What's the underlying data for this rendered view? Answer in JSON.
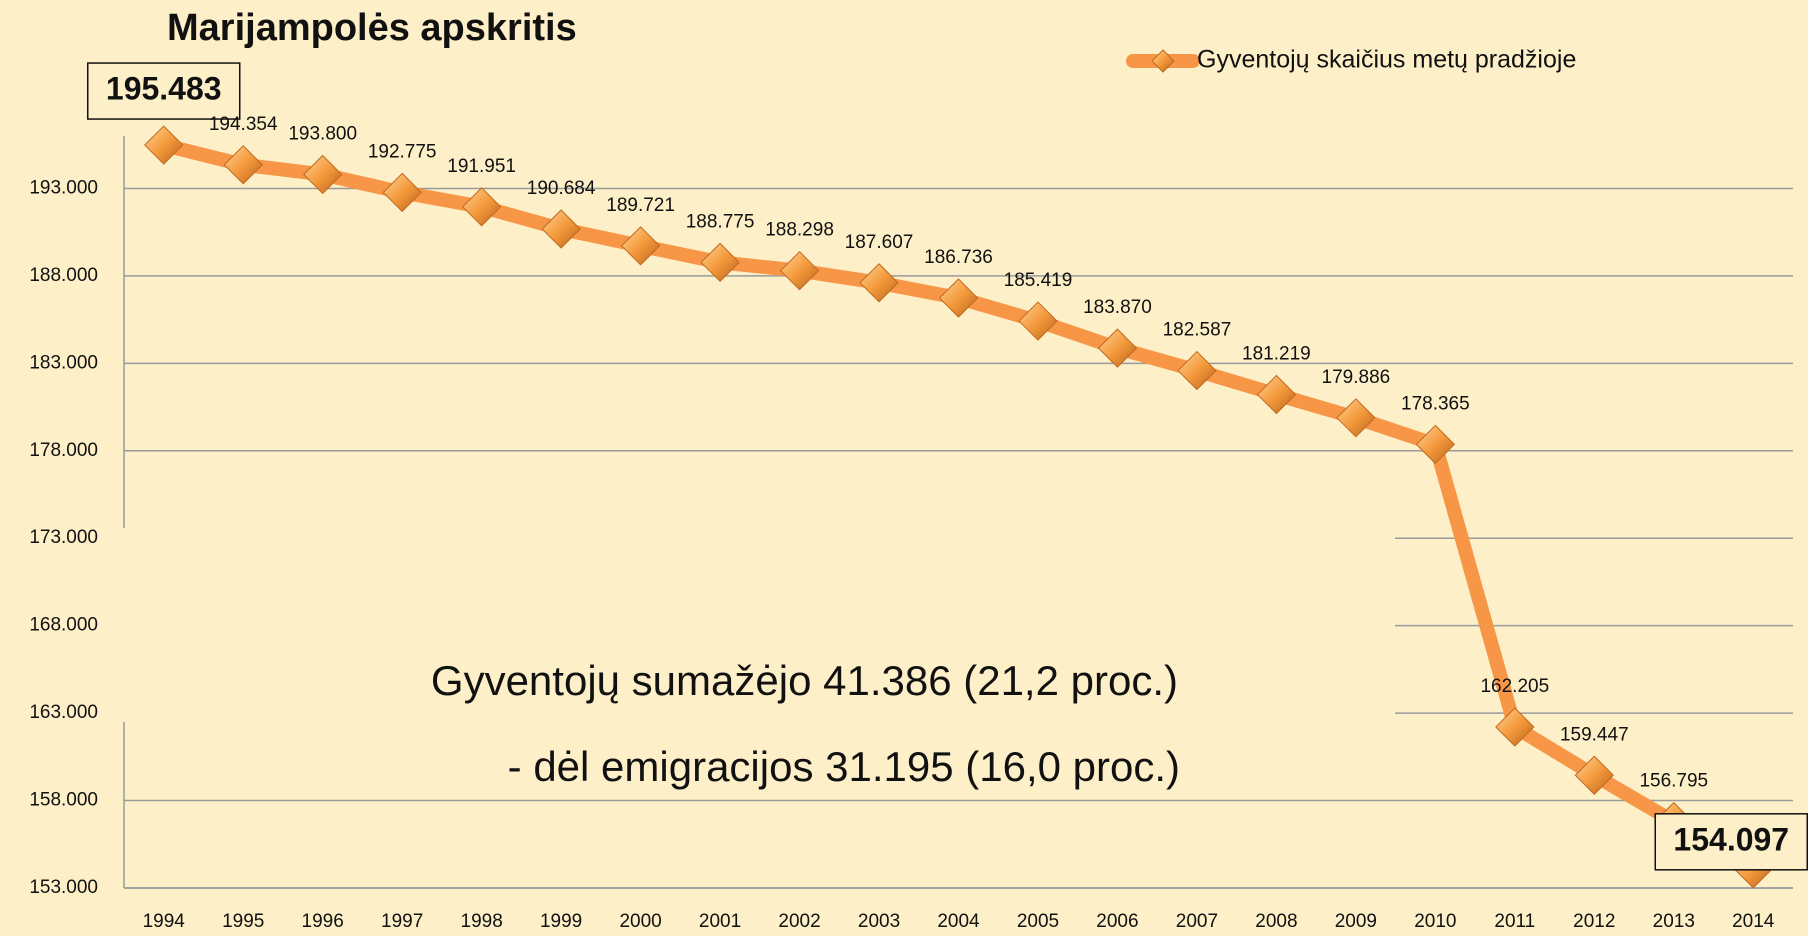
{
  "chart_data": {
    "type": "line",
    "title": "Marijampolės apskritis",
    "annotations": [
      "Gyventojų sumažėjo  41.386 (21,2 proc.)",
      "- dėl emigracijos  31.195 (16,0 proc.)"
    ],
    "categories": [
      "1994",
      "1995",
      "1996",
      "1997",
      "1998",
      "1999",
      "2000",
      "2001",
      "2002",
      "2003",
      "2004",
      "2005",
      "2006",
      "2007",
      "2008",
      "2009",
      "2010",
      "2011",
      "2012",
      "2013",
      "2014"
    ],
    "series": [
      {
        "name": "Gyventojų skaičius metų pradžioje",
        "color": "#f79646",
        "values": [
          195483,
          194354,
          193800,
          192775,
          191951,
          190684,
          189721,
          188775,
          188298,
          187607,
          186736,
          185419,
          183870,
          182587,
          181219,
          179886,
          178365,
          162205,
          159447,
          156795,
          154097
        ],
        "value_labels": [
          "195.483",
          "194.354",
          "193.800",
          "192.775",
          "191.951",
          "190.684",
          "189.721",
          "188.775",
          "188.298",
          "187.607",
          "186.736",
          "185.419",
          "183.870",
          "182.587",
          "181.219",
          "179.886",
          "178.365",
          "162.205",
          "159.447",
          "156.795",
          "154.097"
        ]
      }
    ],
    "ylim": [
      153000,
      196000
    ],
    "yticks": [
      {
        "value": 153000,
        "label": "153.000"
      },
      {
        "value": 158000,
        "label": "158.000"
      },
      {
        "value": 163000,
        "label": "163.000"
      },
      {
        "value": 168000,
        "label": "168.000"
      },
      {
        "value": 173000,
        "label": "173.000"
      },
      {
        "value": 178000,
        "label": "178.000"
      },
      {
        "value": 183000,
        "label": "183.000"
      },
      {
        "value": 188000,
        "label": "188.000"
      },
      {
        "value": 193000,
        "label": "193.000"
      }
    ],
    "grid": true,
    "legend": "top-right"
  }
}
